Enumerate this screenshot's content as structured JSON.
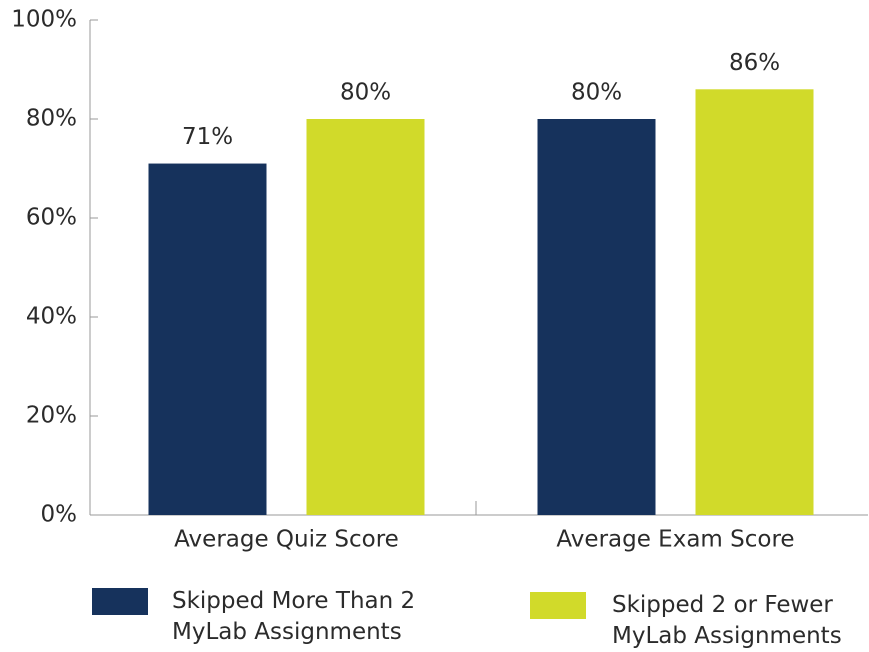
{
  "chart_data": {
    "type": "bar",
    "categories": [
      "Average Quiz Score",
      "Average Exam Score"
    ],
    "series": [
      {
        "name": "Skipped More Than 2 MyLab Assignments",
        "color": "#16325c",
        "values": [
          71,
          80
        ],
        "value_labels": [
          "71%",
          "80%"
        ]
      },
      {
        "name": "Skipped 2 or Fewer MyLab Assignments",
        "color": "#d1da2a",
        "values": [
          80,
          86
        ],
        "value_labels": [
          "80%",
          "86%"
        ]
      }
    ],
    "ylim": [
      0,
      100
    ],
    "yticks": [
      {
        "value": 0,
        "label": "0%"
      },
      {
        "value": 20,
        "label": "20%"
      },
      {
        "value": 40,
        "label": "40%"
      },
      {
        "value": 60,
        "label": "60%"
      },
      {
        "value": 80,
        "label": "80%"
      },
      {
        "value": 100,
        "label": "100%"
      }
    ],
    "legend": "bottom"
  }
}
